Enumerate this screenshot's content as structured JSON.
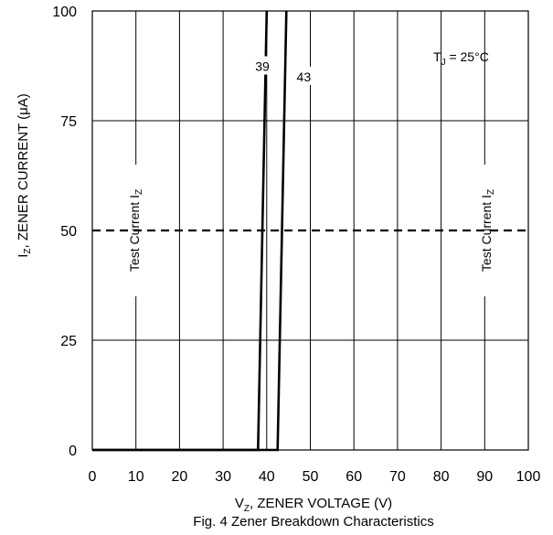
{
  "chart_data": {
    "type": "line",
    "xlabel": {
      "main": "V",
      "sub": "Z",
      "rest": ", ZENER VOLTAGE (V)"
    },
    "ylabel": {
      "main": "I",
      "sub": "Z",
      "rest": ", ZENER CURRENT (μA)"
    },
    "caption": "Fig. 4 Zener Breakdown Characteristics",
    "xlim": [
      0,
      100
    ],
    "ylim": [
      0,
      100
    ],
    "x_ticks": [
      0,
      10,
      20,
      30,
      40,
      50,
      60,
      70,
      80,
      90,
      100
    ],
    "y_ticks": [
      0,
      25,
      50,
      75,
      100
    ],
    "grid": true,
    "series": [
      {
        "name": "39",
        "points": [
          [
            0,
            0
          ],
          [
            38,
            0
          ],
          [
            40,
            100
          ]
        ]
      },
      {
        "name": "43",
        "points": [
          [
            0,
            0
          ],
          [
            42.5,
            0
          ],
          [
            44.5,
            100
          ]
        ]
      }
    ],
    "reference_line": {
      "y": 50,
      "style": "dashed"
    },
    "annotations": {
      "temperature": {
        "main": "T",
        "sub": "J",
        "rest": " = 25°C"
      },
      "test_current": {
        "main": "Test Current I",
        "sub": "Z"
      }
    }
  }
}
